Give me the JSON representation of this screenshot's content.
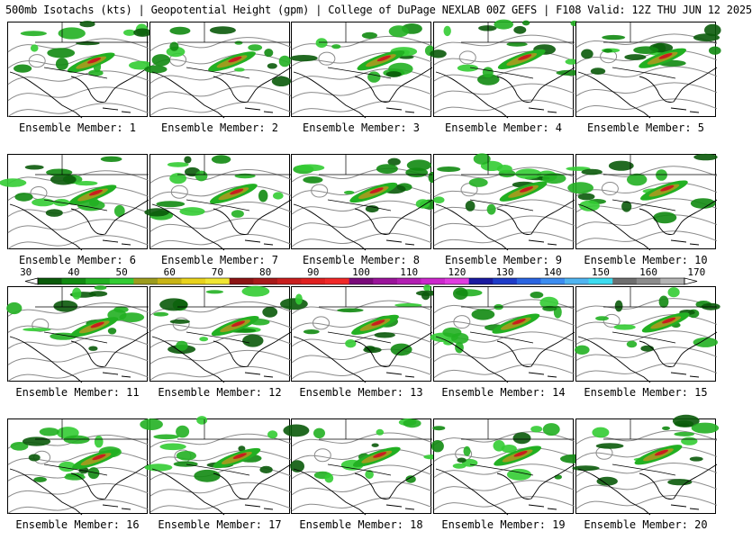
{
  "header": {
    "title": "500mb Isotachs (kts) | Geopotential Height (gpm) | College of DuPage NEXLAB   00Z GEFS | F108 Valid: 12Z THU JUN 12 2025"
  },
  "members": [
    {
      "label": "Ensemble Member: 1"
    },
    {
      "label": "Ensemble Member: 2"
    },
    {
      "label": "Ensemble Member: 3"
    },
    {
      "label": "Ensemble Member: 4"
    },
    {
      "label": "Ensemble Member: 5"
    },
    {
      "label": "Ensemble Member: 6"
    },
    {
      "label": "Ensemble Member: 7"
    },
    {
      "label": "Ensemble Member: 8"
    },
    {
      "label": "Ensemble Member: 9"
    },
    {
      "label": "Ensemble Member: 10"
    },
    {
      "label": "Ensemble Member: 11"
    },
    {
      "label": "Ensemble Member: 12"
    },
    {
      "label": "Ensemble Member: 13"
    },
    {
      "label": "Ensemble Member: 14"
    },
    {
      "label": "Ensemble Member: 15"
    },
    {
      "label": "Ensemble Member: 16"
    },
    {
      "label": "Ensemble Member: 17"
    },
    {
      "label": "Ensemble Member: 18"
    },
    {
      "label": "Ensemble Member: 19"
    },
    {
      "label": "Ensemble Member: 20"
    }
  ],
  "colorbar": {
    "ticks": [
      "30",
      "40",
      "50",
      "60",
      "70",
      "80",
      "90",
      "100",
      "110",
      "120",
      "130",
      "140",
      "150",
      "160",
      "170"
    ],
    "colors": [
      "#0a5a0a",
      "#118a11",
      "#22b022",
      "#33cc33",
      "#9c9c1e",
      "#c8b416",
      "#e8d21c",
      "#f0e632",
      "#8c1414",
      "#a81a1a",
      "#c81e1e",
      "#e02020",
      "#f02828",
      "#7a0a7a",
      "#9a149a",
      "#b21eb2",
      "#cc28cc",
      "#e03ce0",
      "#1a1aa0",
      "#1e3cc8",
      "#2a64e0",
      "#3c8cf0",
      "#50b4f0",
      "#3cdcf0",
      "#6e6e6e",
      "#8c8c8c",
      "#b4b4b4"
    ]
  }
}
